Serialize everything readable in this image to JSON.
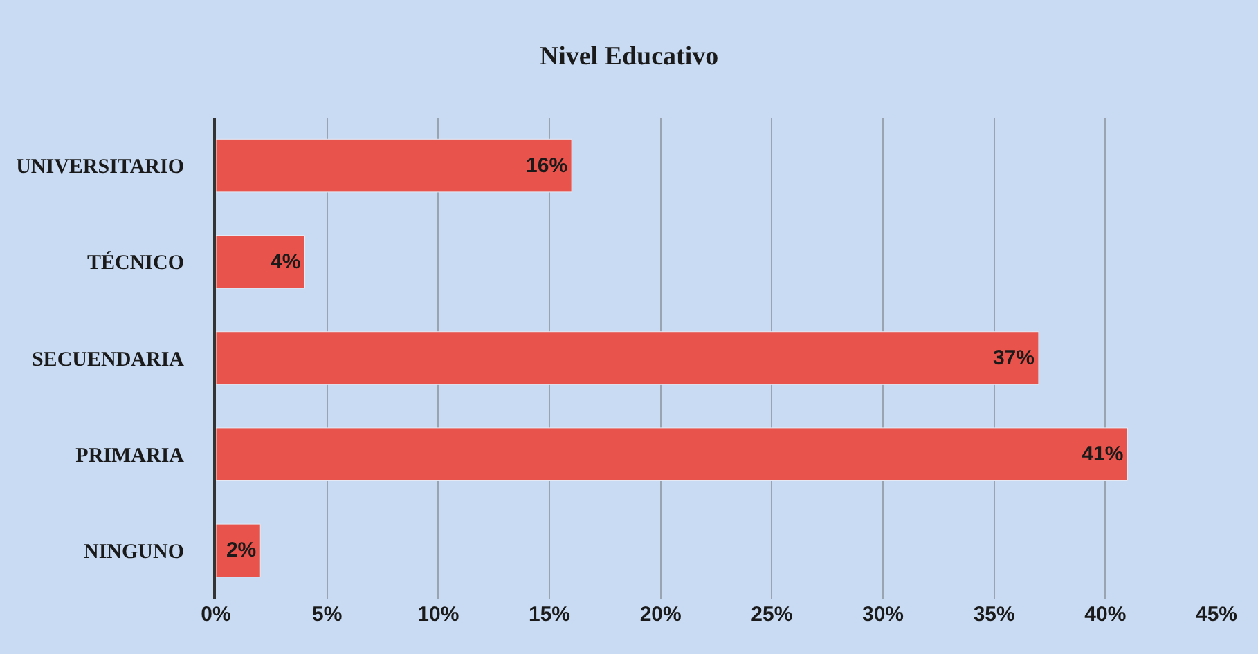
{
  "chart_data": {
    "type": "bar",
    "orientation": "horizontal",
    "title": "Nivel Educativo",
    "categories": [
      "UNIVERSITARIO",
      "TÉCNICO",
      "SECUENDARIA",
      "PRIMARIA",
      "NINGUNO"
    ],
    "values": [
      16,
      4,
      37,
      41,
      2
    ],
    "value_labels": [
      "16%",
      "4%",
      "37%",
      "41%",
      "2%"
    ],
    "color": "#e8534b",
    "xlim": [
      0,
      45
    ],
    "xticks": [
      {
        "value": 0,
        "label": "0%"
      },
      {
        "value": 5,
        "label": "5%"
      },
      {
        "value": 10,
        "label": "10%"
      },
      {
        "value": 15,
        "label": "15%"
      },
      {
        "value": 20,
        "label": "20%"
      },
      {
        "value": 25,
        "label": "25%"
      },
      {
        "value": 30,
        "label": "30%"
      },
      {
        "value": 35,
        "label": "35%"
      },
      {
        "value": 40,
        "label": "40%"
      },
      {
        "value": 45,
        "label": "45%"
      }
    ],
    "grid": "x"
  }
}
